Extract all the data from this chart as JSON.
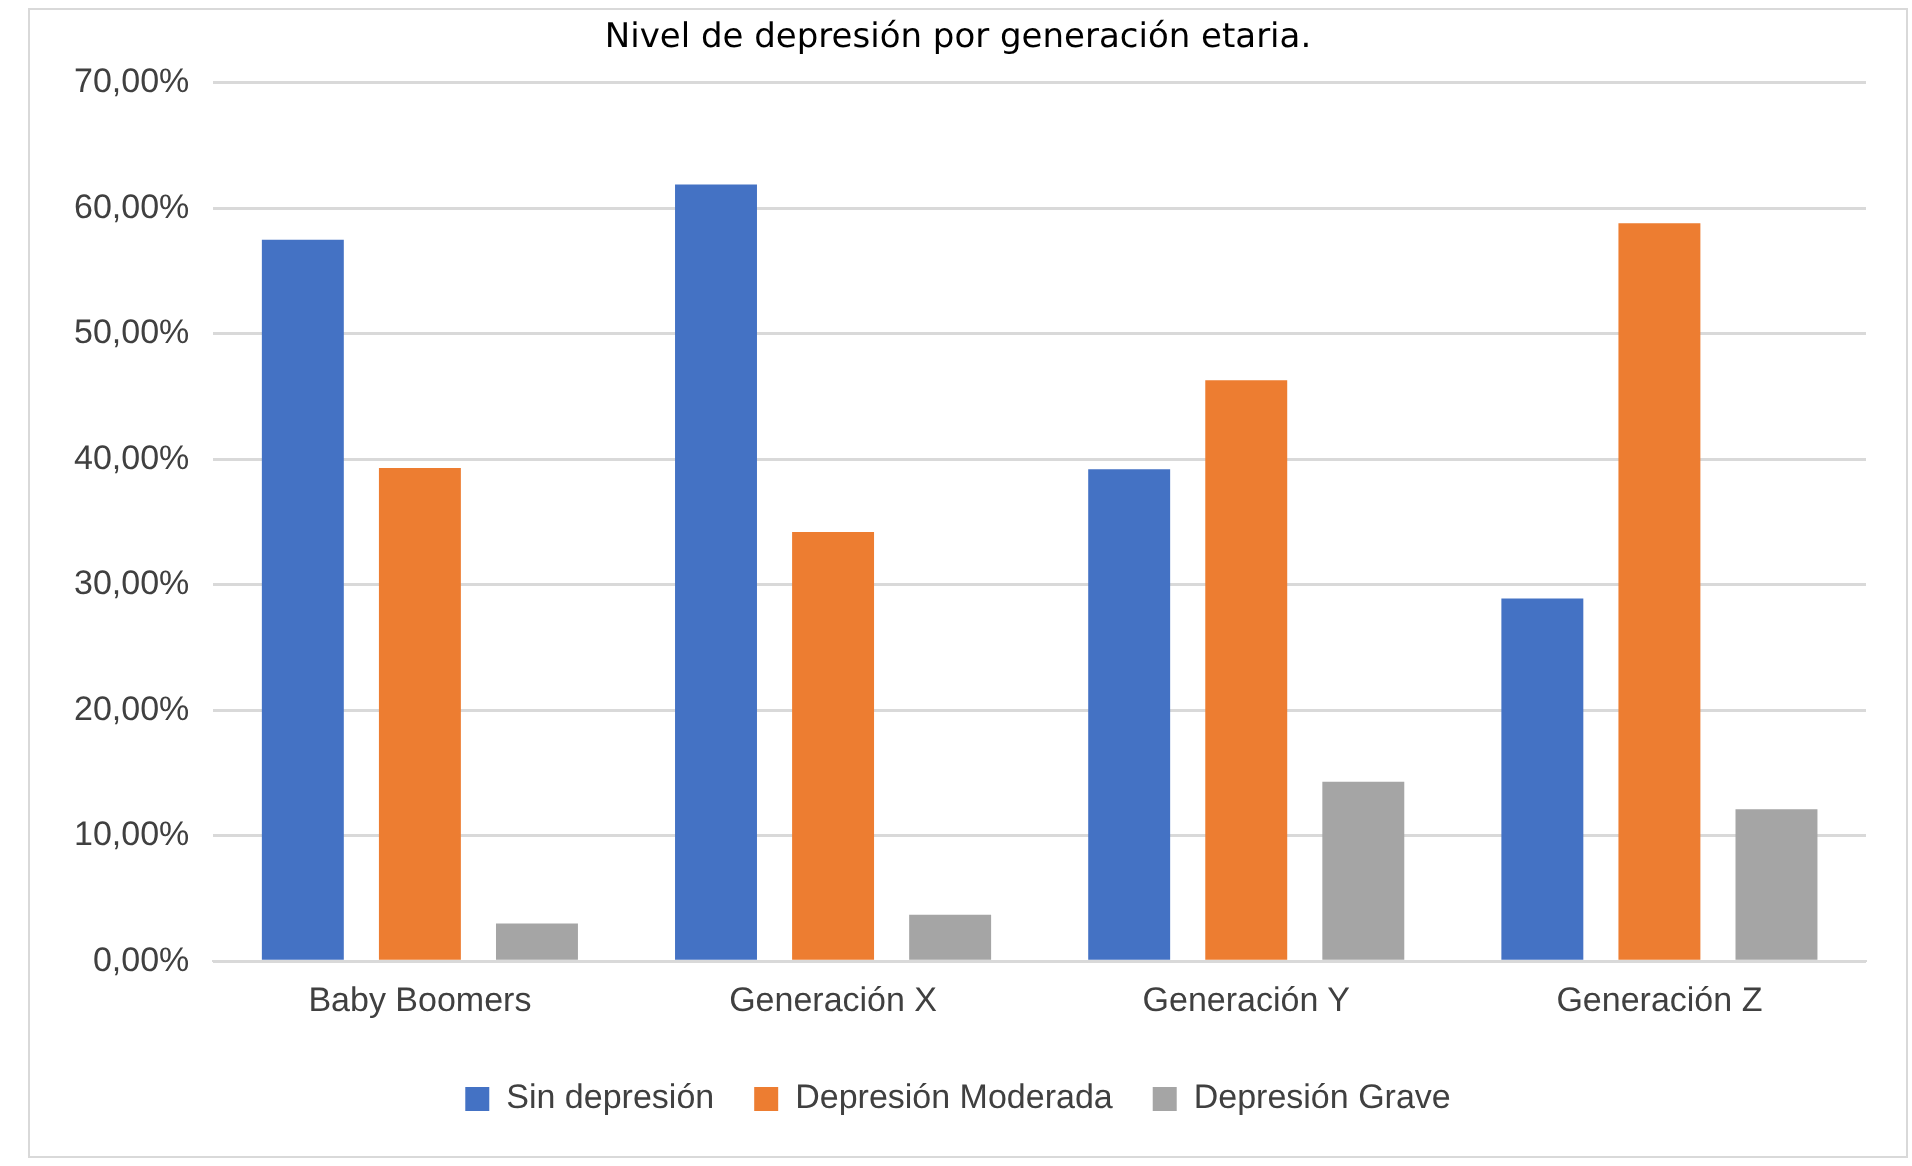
{
  "chart_data": {
    "type": "bar",
    "title": "Nivel de depresión por generación etaria.",
    "categories": [
      "Baby Boomers",
      "Generación X",
      "Generación Y",
      "Generación Z"
    ],
    "series": [
      {
        "name": "Sin depresión",
        "color": "#4472c4",
        "values": [
          57.5,
          61.9,
          39.2,
          28.9
        ]
      },
      {
        "name": "Depresión Moderada",
        "color": "#ed7d31",
        "values": [
          39.3,
          34.2,
          46.3,
          58.8
        ]
      },
      {
        "name": "Depresión Grave",
        "color": "#a5a5a5",
        "values": [
          3.0,
          3.7,
          14.3,
          12.1
        ]
      }
    ],
    "ylim": [
      0,
      70
    ],
    "yticks": [
      {
        "value": 0,
        "label": "0,00%"
      },
      {
        "value": 10,
        "label": "10,00%"
      },
      {
        "value": 20,
        "label": "20,00%"
      },
      {
        "value": 30,
        "label": "30,00%"
      },
      {
        "value": 40,
        "label": "40,00%"
      },
      {
        "value": 50,
        "label": "50,00%"
      },
      {
        "value": 60,
        "label": "60,00%"
      },
      {
        "value": 70,
        "label": "70,00%"
      }
    ],
    "grid": "y",
    "legend": "bottom"
  }
}
